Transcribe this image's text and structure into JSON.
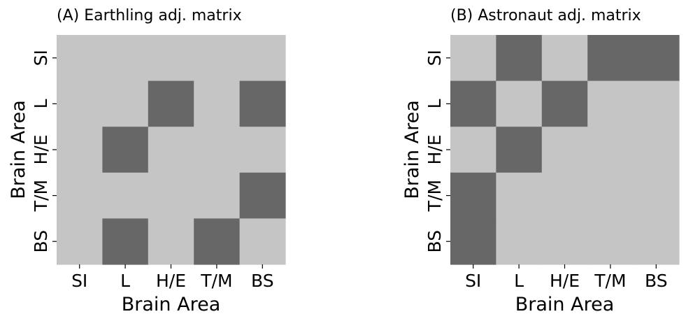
{
  "chart_data": [
    {
      "type": "heatmap",
      "title": "(A) Earthling adj. matrix",
      "xlabel": "Brain Area",
      "ylabel": "Brain Area",
      "x_categories": [
        "SI",
        "L",
        "H/E",
        "T/M",
        "BS"
      ],
      "y_categories": [
        "SI",
        "L",
        "H/E",
        "T/M",
        "BS"
      ],
      "values": [
        [
          0,
          0,
          0,
          0,
          0
        ],
        [
          0,
          0,
          1,
          0,
          1
        ],
        [
          0,
          1,
          0,
          0,
          0
        ],
        [
          0,
          0,
          0,
          0,
          1
        ],
        [
          0,
          1,
          0,
          1,
          0
        ]
      ],
      "colors": {
        "0": "#c5c5c5",
        "1": "#676767"
      },
      "grid": false,
      "colorbar": false
    },
    {
      "type": "heatmap",
      "title": "(B) Astronaut adj. matrix",
      "xlabel": "Brain Area",
      "ylabel": "Brain Area",
      "x_categories": [
        "SI",
        "L",
        "H/E",
        "T/M",
        "BS"
      ],
      "y_categories": [
        "SI",
        "L",
        "H/E",
        "T/M",
        "BS"
      ],
      "values": [
        [
          0,
          1,
          0,
          1,
          1
        ],
        [
          1,
          0,
          1,
          0,
          0
        ],
        [
          0,
          1,
          0,
          0,
          0
        ],
        [
          1,
          0,
          0,
          0,
          0
        ],
        [
          1,
          0,
          0,
          0,
          0
        ]
      ],
      "colors": {
        "0": "#c5c5c5",
        "1": "#676767"
      },
      "grid": false,
      "colorbar": false
    }
  ]
}
